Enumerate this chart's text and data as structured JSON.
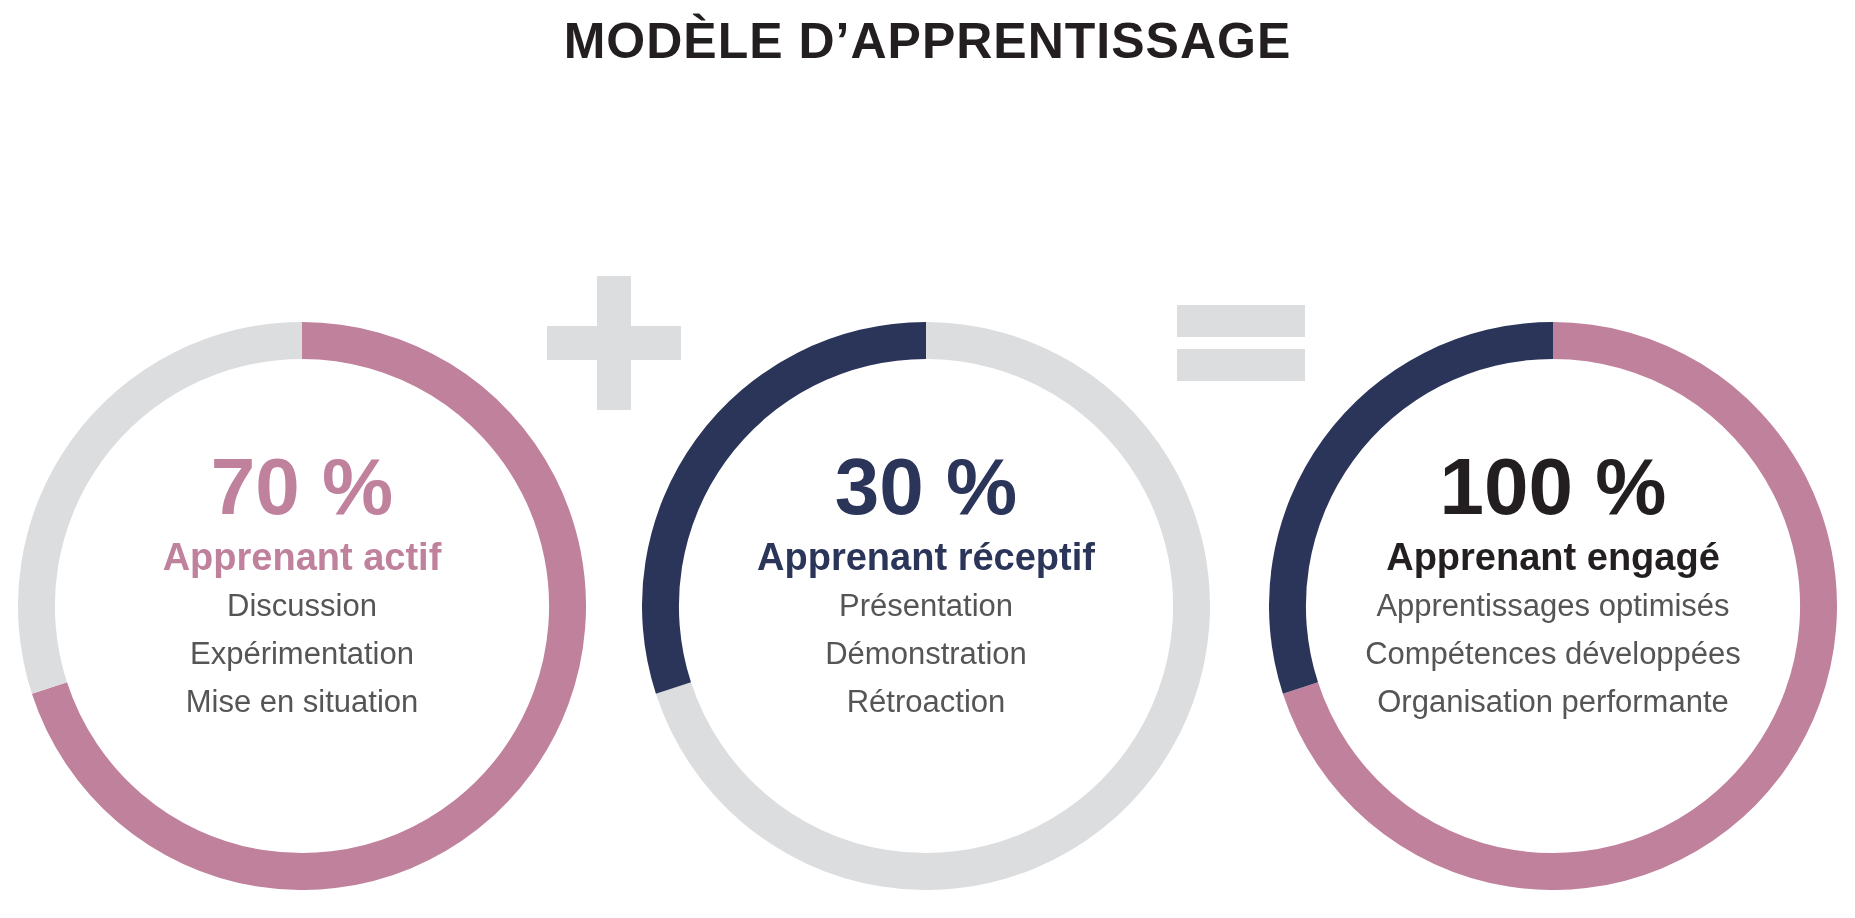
{
  "chart_data": [
    {
      "type": "other",
      "title": "MODÈLE D’APPRENTISSAGE"
    },
    {
      "type": "donut",
      "title": "70 %",
      "subtitle": "Apprenant actif",
      "categories": [
        null,
        null
      ],
      "values": [
        70,
        30
      ],
      "colors": [
        "#c0819d",
        "#dcdddf"
      ],
      "annotations": [
        "Discussion",
        "Expérimentation",
        "Mise en situation"
      ]
    },
    {
      "type": "donut",
      "title": "30 %",
      "subtitle": "Apprenant réceptif",
      "categories": [
        null,
        null
      ],
      "values": [
        70,
        30
      ],
      "colors": [
        "#dcdddf",
        "#2b355a"
      ],
      "annotations": [
        "Présentation",
        "Démonstration",
        "Rétroaction"
      ]
    },
    {
      "type": "donut",
      "title": "100 %",
      "subtitle": "Apprenant engagé",
      "categories": [
        null,
        null
      ],
      "values": [
        70,
        30
      ],
      "colors": [
        "#c0819d",
        "#2b355a"
      ],
      "annotations": [
        "Apprentissages optimisés",
        "Compétences développées",
        "Organisation performante"
      ]
    }
  ]
}
